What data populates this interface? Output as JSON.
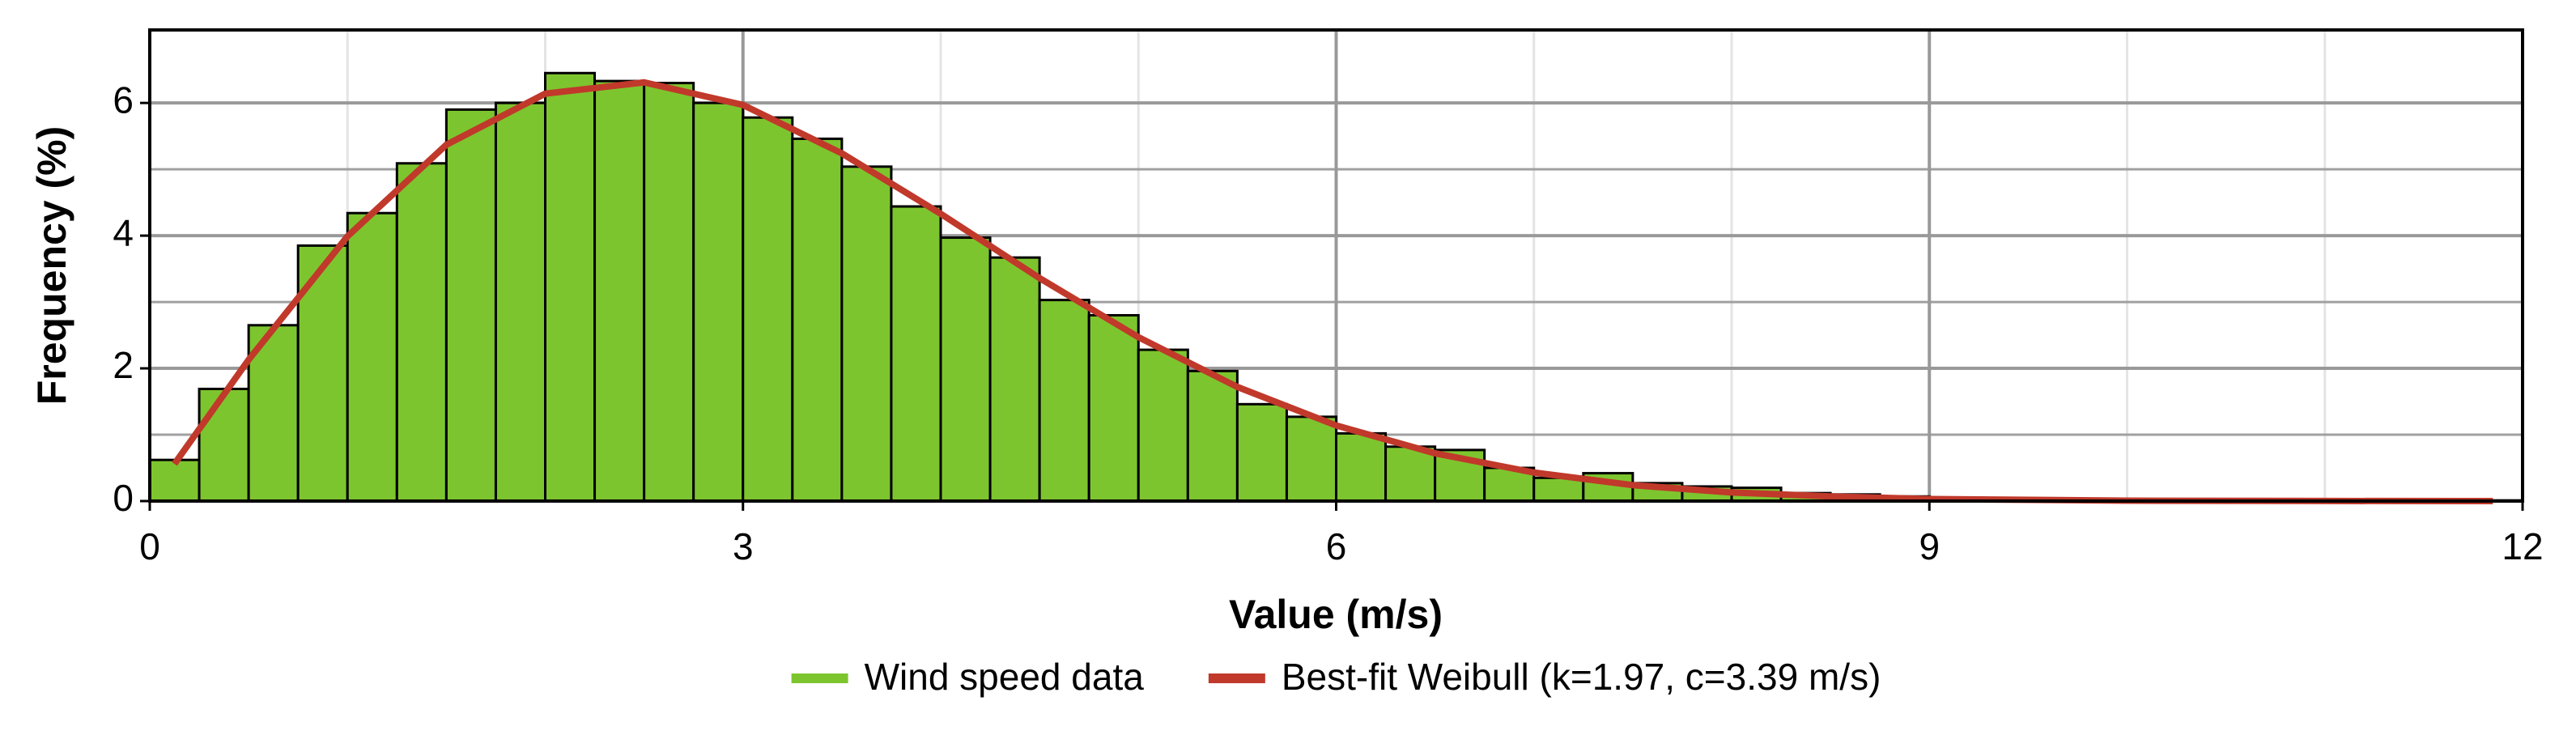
{
  "chart_data": {
    "type": "histogram",
    "xlabel": "Value (m/s)",
    "ylabel": "Frequency (%)",
    "bins": [
      0,
      0.25,
      0.5,
      0.75,
      1,
      1.25,
      1.5,
      1.75,
      2,
      2.25,
      2.5,
      2.75,
      3,
      3.25,
      3.5,
      3.75,
      4,
      4.25,
      4.5,
      4.75,
      5,
      5.25,
      5.5,
      5.75,
      6,
      6.25,
      6.5,
      6.75,
      7,
      7.25,
      7.5,
      7.75,
      8,
      8.25,
      8.5,
      8.75,
      9,
      9.25,
      9.5,
      9.75,
      10,
      10.25,
      10.5,
      10.75,
      11,
      11.25,
      11.5,
      11.75,
      12
    ],
    "series": [
      {
        "name": "Wind speed data",
        "type": "histogram",
        "color": "#7dc52e",
        "values": [
          0.62,
          1.69,
          2.65,
          3.85,
          4.34,
          5.09,
          5.9,
          6.0,
          6.45,
          6.33,
          6.3,
          6.0,
          5.78,
          5.46,
          5.04,
          4.44,
          3.97,
          3.67,
          3.03,
          2.8,
          2.28,
          1.96,
          1.46,
          1.27,
          1.02,
          0.82,
          0.77,
          0.5,
          0.35,
          0.42,
          0.27,
          0.22,
          0.2,
          0.12,
          0.1,
          0.07,
          0.05,
          0.04,
          0.03,
          0.03,
          0.02,
          0.02,
          0.02,
          0.01,
          0.01,
          0.01,
          0.01,
          0.01
        ]
      },
      {
        "name": "Best-fit Weibull (k=1.97, c=3.39 m/s)",
        "type": "line",
        "color": "#c0392b",
        "x": [
          0.125,
          0.5,
          1,
          1.5,
          2,
          2.5,
          3,
          3.5,
          4,
          4.5,
          5,
          5.5,
          6,
          6.5,
          7,
          7.5,
          8,
          8.5,
          9,
          10,
          11,
          11.85
        ],
        "values": [
          0.56,
          2.13,
          3.99,
          5.37,
          6.14,
          6.31,
          5.97,
          5.24,
          4.33,
          3.36,
          2.47,
          1.72,
          1.14,
          0.72,
          0.43,
          0.24,
          0.13,
          0.07,
          0.03,
          0.006,
          0.001,
          0
        ]
      }
    ],
    "xlim": [
      0,
      12
    ],
    "xticks": [
      0,
      3,
      6,
      9,
      12
    ],
    "xminor": [
      1,
      2,
      4,
      5,
      7,
      8,
      10,
      11
    ],
    "ylim": [
      0,
      7.1
    ],
    "yticks": [
      0,
      2,
      4,
      6
    ],
    "yminor": [
      1,
      3,
      5
    ],
    "grid": true,
    "legend": "bottom"
  }
}
